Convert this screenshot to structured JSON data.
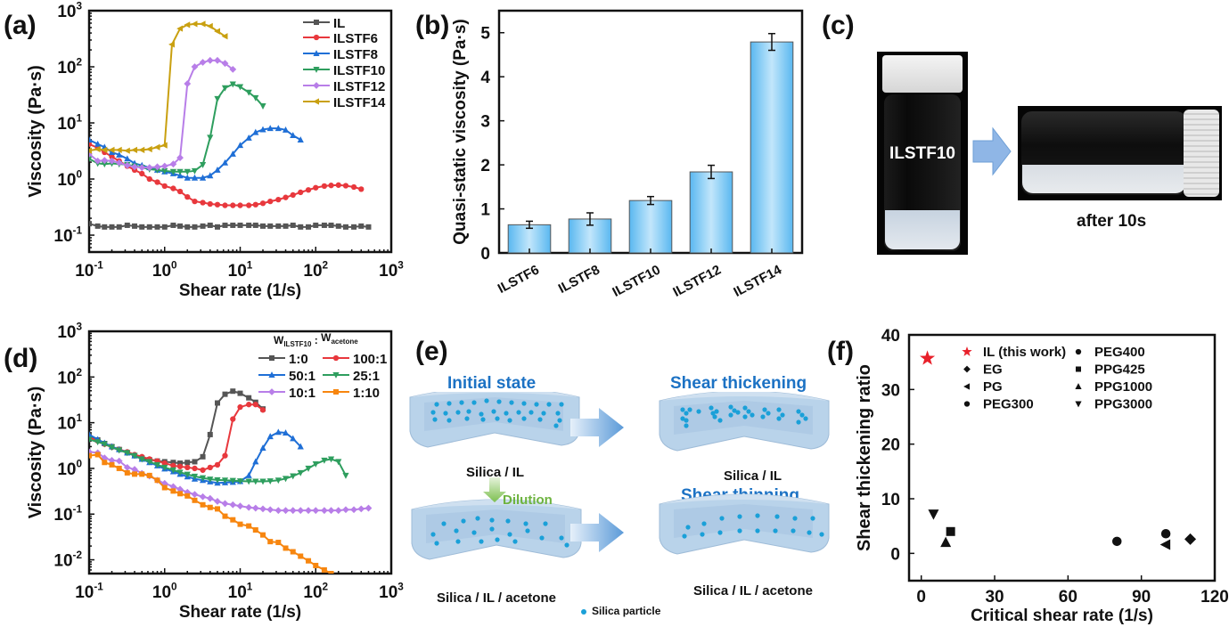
{
  "panel_labels": {
    "a": "(a)",
    "b": "(b)",
    "c": "(c)",
    "d": "(d)",
    "e": "(e)",
    "f": "(f)"
  },
  "chart_data": [
    {
      "id": "a",
      "type": "line",
      "xscale": "log",
      "yscale": "log",
      "xlabel": "Shear rate (1/s)",
      "ylabel": "Viscosity (Pa·s)",
      "xlim": [
        0.1,
        1000
      ],
      "ylim": [
        0.05,
        1000
      ],
      "xticks": [
        {
          "v": 0.1,
          "b": "10",
          "e": "-1"
        },
        {
          "v": 1,
          "b": "10",
          "e": "0"
        },
        {
          "v": 10,
          "b": "10",
          "e": "1"
        },
        {
          "v": 100,
          "b": "10",
          "e": "2"
        },
        {
          "v": 1000,
          "b": "10",
          "e": "3"
        }
      ],
      "yticks": [
        {
          "v": 0.1,
          "b": "10",
          "e": "-1"
        },
        {
          "v": 1,
          "b": "10",
          "e": "0"
        },
        {
          "v": 10,
          "b": "10",
          "e": "1"
        },
        {
          "v": 100,
          "b": "10",
          "e": "2"
        },
        {
          "v": 1000,
          "b": "10",
          "e": "3"
        }
      ],
      "legend": "top-right",
      "series": [
        {
          "name": "IL",
          "color": "#555555",
          "marker": "square",
          "x": [
            0.1,
            0.13,
            0.16,
            0.2,
            0.25,
            0.32,
            0.4,
            0.5,
            0.63,
            0.8,
            1,
            1.3,
            1.6,
            2,
            2.5,
            3.2,
            4,
            5,
            6.3,
            8,
            10,
            13,
            16,
            20,
            25,
            32,
            40,
            50,
            63,
            80,
            100,
            130,
            160,
            200,
            250,
            320,
            400,
            500
          ],
          "y": [
            0.16,
            0.145,
            0.14,
            0.14,
            0.14,
            0.15,
            0.145,
            0.14,
            0.14,
            0.14,
            0.14,
            0.15,
            0.145,
            0.14,
            0.14,
            0.145,
            0.15,
            0.14,
            0.15,
            0.15,
            0.15,
            0.15,
            0.15,
            0.145,
            0.145,
            0.145,
            0.145,
            0.15,
            0.14,
            0.14,
            0.15,
            0.15,
            0.15,
            0.145,
            0.14,
            0.14,
            0.145,
            0.14
          ]
        },
        {
          "name": "ILSTF6",
          "color": "#e8383d",
          "marker": "circle",
          "x": [
            0.1,
            0.13,
            0.16,
            0.2,
            0.25,
            0.32,
            0.4,
            0.5,
            0.63,
            0.8,
            1,
            1.3,
            1.6,
            2,
            2.5,
            3.2,
            4,
            5,
            6.3,
            8,
            10,
            13,
            16,
            20,
            25,
            32,
            40,
            50,
            63,
            80,
            100,
            130,
            160,
            200,
            250,
            320,
            400
          ],
          "y": [
            4.2,
            3.6,
            3.0,
            2.5,
            2.1,
            1.7,
            1.45,
            1.25,
            1.0,
            0.88,
            0.75,
            0.68,
            0.6,
            0.48,
            0.4,
            0.38,
            0.36,
            0.35,
            0.34,
            0.34,
            0.34,
            0.34,
            0.35,
            0.37,
            0.4,
            0.43,
            0.47,
            0.52,
            0.58,
            0.64,
            0.7,
            0.75,
            0.77,
            0.78,
            0.76,
            0.72,
            0.66
          ]
        },
        {
          "name": "ILSTF8",
          "color": "#1f6fd6",
          "marker": "triangle-up",
          "x": [
            0.1,
            0.13,
            0.16,
            0.2,
            0.25,
            0.32,
            0.4,
            0.5,
            0.63,
            0.8,
            1,
            1.3,
            1.6,
            2,
            2.5,
            3.2,
            4,
            5,
            6.3,
            8,
            10,
            13,
            16,
            20,
            25,
            32,
            40,
            50,
            63
          ],
          "y": [
            5.0,
            4.2,
            3.7,
            3.0,
            2.7,
            2.3,
            1.9,
            1.75,
            1.6,
            1.45,
            1.35,
            1.25,
            1.15,
            1.05,
            1.05,
            1.05,
            1.15,
            1.45,
            1.95,
            2.8,
            4.0,
            5.4,
            6.8,
            7.6,
            8.0,
            8.0,
            7.5,
            6.0,
            5.0
          ]
        },
        {
          "name": "ILSTF10",
          "color": "#2e9e5e",
          "marker": "triangle-down",
          "x": [
            0.1,
            0.13,
            0.16,
            0.2,
            0.25,
            0.32,
            0.4,
            0.5,
            0.63,
            0.8,
            1,
            1.3,
            1.6,
            2,
            2.5,
            3.2,
            4,
            5,
            6.3,
            8,
            10,
            13,
            16,
            20
          ],
          "y": [
            2.3,
            1.9,
            1.85,
            1.9,
            1.85,
            1.8,
            1.7,
            1.6,
            1.5,
            1.45,
            1.4,
            1.35,
            1.35,
            1.35,
            1.4,
            1.8,
            5.5,
            27,
            42,
            49,
            44,
            35,
            28,
            20
          ]
        },
        {
          "name": "ILSTF12",
          "color": "#b87ee8",
          "marker": "diamond",
          "x": [
            0.1,
            0.13,
            0.16,
            0.2,
            0.25,
            0.32,
            0.4,
            0.5,
            0.63,
            0.8,
            1,
            1.3,
            1.6,
            2,
            2.5,
            3.2,
            4,
            5,
            6.3,
            8
          ],
          "y": [
            2.8,
            2.1,
            2.15,
            2.1,
            1.95,
            1.75,
            1.65,
            1.6,
            1.6,
            1.65,
            1.7,
            1.85,
            2.4,
            50,
            100,
            120,
            130,
            130,
            115,
            90
          ]
        },
        {
          "name": "ILSTF14",
          "color": "#c9a010",
          "marker": "triangle-left",
          "x": [
            0.1,
            0.13,
            0.16,
            0.2,
            0.25,
            0.32,
            0.4,
            0.5,
            0.63,
            0.8,
            1,
            1.25,
            1.6,
            2,
            2.5,
            3.2,
            4,
            5,
            6.3
          ],
          "y": [
            3.2,
            3.4,
            3.3,
            3.3,
            3.3,
            3.2,
            3.3,
            3.3,
            3.4,
            3.7,
            4.0,
            250,
            480,
            560,
            580,
            580,
            530,
            430,
            350
          ]
        }
      ]
    },
    {
      "id": "b",
      "type": "bar",
      "categories": [
        "ILSTF6",
        "ILSTF8",
        "ILSTF10",
        "ILSTF12",
        "ILSTF14"
      ],
      "values": [
        0.64,
        0.77,
        1.19,
        1.84,
        4.79
      ],
      "errors": [
        0.08,
        0.14,
        0.09,
        0.15,
        0.19
      ],
      "ylabel": "Quasi-static viscosity (Pa·s)",
      "xlabel": "",
      "ylim": [
        0,
        5.5
      ],
      "yticks": [
        0,
        1,
        2,
        3,
        4,
        5
      ],
      "bar_color": "#7ec8f4"
    },
    {
      "id": "d",
      "type": "line",
      "xscale": "log",
      "yscale": "log",
      "xlabel": "Shear rate (1/s)",
      "ylabel": "Viscosity (Pa·s)",
      "xlim": [
        0.1,
        1000
      ],
      "ylim": [
        0.005,
        1000
      ],
      "xticks": [
        {
          "v": 0.1,
          "b": "10",
          "e": "-1"
        },
        {
          "v": 1,
          "b": "10",
          "e": "0"
        },
        {
          "v": 10,
          "b": "10",
          "e": "1"
        },
        {
          "v": 100,
          "b": "10",
          "e": "2"
        },
        {
          "v": 1000,
          "b": "10",
          "e": "3"
        }
      ],
      "yticks": [
        {
          "v": 0.01,
          "b": "10",
          "e": "-2"
        },
        {
          "v": 0.1,
          "b": "10",
          "e": "-1"
        },
        {
          "v": 1,
          "b": "10",
          "e": "0"
        },
        {
          "v": 10,
          "b": "10",
          "e": "1"
        },
        {
          "v": 100,
          "b": "10",
          "e": "2"
        },
        {
          "v": 1000,
          "b": "10",
          "e": "3"
        }
      ],
      "legend_title_parts": {
        "w1": "W",
        "s1": "ILSTF10",
        "sep": " : ",
        "w2": "W",
        "s2": "acetone"
      },
      "legend": "top-right",
      "series": [
        {
          "name": "1:0",
          "color": "#555555",
          "marker": "square",
          "x": [
            0.1,
            0.13,
            0.16,
            0.2,
            0.25,
            0.32,
            0.4,
            0.5,
            0.63,
            0.8,
            1,
            1.3,
            1.6,
            2,
            2.5,
            3.2,
            4,
            5,
            6.3,
            8,
            10,
            13,
            16,
            20
          ],
          "y": [
            5.0,
            4.2,
            3.5,
            3.0,
            2.6,
            2.2,
            1.9,
            1.7,
            1.55,
            1.45,
            1.4,
            1.35,
            1.3,
            1.35,
            1.4,
            1.8,
            5.5,
            27,
            42,
            49,
            44,
            35,
            28,
            20
          ]
        },
        {
          "name": "100:1",
          "color": "#e8383d",
          "marker": "circle",
          "x": [
            0.1,
            0.13,
            0.16,
            0.2,
            0.25,
            0.32,
            0.4,
            0.5,
            0.63,
            0.8,
            1,
            1.3,
            1.6,
            2,
            2.5,
            3.2,
            4,
            5,
            6.3,
            8,
            10,
            13,
            16,
            20
          ],
          "y": [
            4.8,
            4.0,
            3.4,
            2.9,
            2.6,
            2.3,
            2.0,
            1.8,
            1.6,
            1.45,
            1.3,
            1.15,
            1.1,
            1.05,
            1.0,
            0.92,
            1.05,
            1.2,
            1.9,
            12,
            22,
            25,
            25,
            19
          ]
        },
        {
          "name": "50:1",
          "color": "#1f6fd6",
          "marker": "triangle-up",
          "x": [
            0.1,
            0.13,
            0.16,
            0.2,
            0.25,
            0.32,
            0.4,
            0.5,
            0.63,
            0.8,
            1,
            1.3,
            1.6,
            2,
            2.5,
            3.2,
            4,
            5,
            6.3,
            8,
            10,
            13,
            16,
            20,
            25,
            32,
            40,
            50,
            63
          ],
          "y": [
            5.5,
            4.3,
            3.6,
            3.0,
            2.6,
            2.2,
            1.9,
            1.6,
            1.35,
            1.15,
            0.98,
            0.85,
            0.75,
            0.66,
            0.59,
            0.55,
            0.51,
            0.48,
            0.49,
            0.5,
            0.52,
            0.7,
            1.4,
            2.8,
            5.0,
            6.2,
            6.0,
            4.5,
            3.0
          ]
        },
        {
          "name": "25:1",
          "color": "#2e9e5e",
          "marker": "triangle-down",
          "x": [
            0.1,
            0.13,
            0.16,
            0.2,
            0.25,
            0.32,
            0.4,
            0.5,
            0.63,
            0.8,
            1,
            1.3,
            1.6,
            2,
            2.5,
            3.2,
            4,
            5,
            6.3,
            8,
            10,
            13,
            16,
            20,
            25,
            32,
            40,
            50,
            63,
            80,
            100,
            130,
            160,
            200,
            250
          ],
          "y": [
            4.3,
            3.8,
            3.4,
            2.9,
            2.5,
            2.2,
            1.9,
            1.6,
            1.4,
            1.2,
            1.05,
            0.92,
            0.82,
            0.74,
            0.67,
            0.62,
            0.58,
            0.56,
            0.55,
            0.54,
            0.53,
            0.52,
            0.52,
            0.52,
            0.53,
            0.55,
            0.6,
            0.68,
            0.8,
            1.0,
            1.25,
            1.5,
            1.6,
            1.4,
            0.7
          ]
        },
        {
          "name": "10:1",
          "color": "#b87ee8",
          "marker": "diamond",
          "x": [
            0.1,
            0.13,
            0.16,
            0.2,
            0.25,
            0.32,
            0.4,
            0.5,
            0.63,
            0.8,
            1,
            1.3,
            1.6,
            2,
            2.5,
            3.2,
            4,
            5,
            6.3,
            8,
            10,
            13,
            16,
            20,
            25,
            32,
            40,
            50,
            63,
            80,
            100,
            130,
            160,
            200,
            250,
            320,
            400,
            500
          ],
          "y": [
            2.3,
            2.2,
            1.7,
            1.5,
            1.45,
            1.05,
            0.95,
            0.78,
            0.68,
            0.55,
            0.47,
            0.4,
            0.35,
            0.3,
            0.27,
            0.24,
            0.22,
            0.19,
            0.17,
            0.16,
            0.15,
            0.14,
            0.135,
            0.13,
            0.125,
            0.12,
            0.12,
            0.12,
            0.12,
            0.12,
            0.12,
            0.12,
            0.12,
            0.12,
            0.125,
            0.125,
            0.13,
            0.135
          ]
        },
        {
          "name": "1:10",
          "color": "#f7860f",
          "marker": "square",
          "x": [
            0.1,
            0.13,
            0.16,
            0.2,
            0.25,
            0.32,
            0.4,
            0.5,
            0.63,
            0.8,
            1,
            1.3,
            1.6,
            2,
            2.5,
            3.2,
            4,
            5,
            6.3,
            8,
            10,
            13,
            16,
            20,
            25,
            32,
            40,
            50,
            63,
            80,
            100,
            130,
            160
          ],
          "y": [
            1.9,
            2.0,
            1.35,
            1.2,
            1.0,
            0.8,
            0.75,
            0.75,
            0.7,
            0.55,
            0.38,
            0.32,
            0.28,
            0.25,
            0.2,
            0.16,
            0.14,
            0.13,
            0.09,
            0.075,
            0.06,
            0.055,
            0.045,
            0.035,
            0.025,
            0.024,
            0.018,
            0.015,
            0.012,
            0.0095,
            0.0075,
            0.006,
            0.005
          ]
        }
      ]
    },
    {
      "id": "f",
      "type": "scatter",
      "xlabel": "Critical shear rate (1/s)",
      "ylabel": "Shear thickening ratio",
      "xlim": [
        -5,
        120
      ],
      "ylim": [
        -5,
        40
      ],
      "xticks": [
        0,
        30,
        60,
        90,
        120
      ],
      "yticks": [
        0,
        10,
        20,
        30,
        40
      ],
      "legend": "top-right",
      "points": [
        {
          "name": "IL (this work)",
          "marker": "star",
          "color": "#e8202a",
          "x": 2.5,
          "y": 35.7
        },
        {
          "name": "EG",
          "marker": "diamond",
          "color": "#111111",
          "x": 110,
          "y": 2.6
        },
        {
          "name": "PG",
          "marker": "triangle-left",
          "color": "#111111",
          "x": 100,
          "y": 1.6
        },
        {
          "name": "PEG300",
          "marker": "circle",
          "color": "#111111",
          "x": 80,
          "y": 2.2
        },
        {
          "name": "PEG400",
          "marker": "circle",
          "color": "#111111",
          "x": 100,
          "y": 3.6
        },
        {
          "name": "PPG425",
          "marker": "square",
          "color": "#111111",
          "x": 12,
          "y": 4.0
        },
        {
          "name": "PPG1000",
          "marker": "triangle-up",
          "color": "#111111",
          "x": 10,
          "y": 2.0
        },
        {
          "name": "PPG3000",
          "marker": "triangle-down",
          "color": "#111111",
          "x": 5,
          "y": 7.2
        }
      ]
    }
  ],
  "panel_c": {
    "vial_label": "ILSTF10",
    "caption": "after 10s",
    "arrow_color": "#8fb6e6"
  },
  "panel_e": {
    "titles": {
      "initial": "Initial state",
      "thick": "Shear thickening",
      "thin": "Shear thinning"
    },
    "subs": {
      "tl": "Silica / IL",
      "tr": "Silica / IL",
      "bl": "Silica / IL / acetone",
      "br": "Silica / IL / acetone"
    },
    "dilution": "Dilution",
    "particle_legend": "Silica particle",
    "colors": {
      "title": "#1c72c4",
      "dilution": "#6db33f",
      "particle": "#1aa0d8",
      "container": "#b9d3ea"
    }
  }
}
